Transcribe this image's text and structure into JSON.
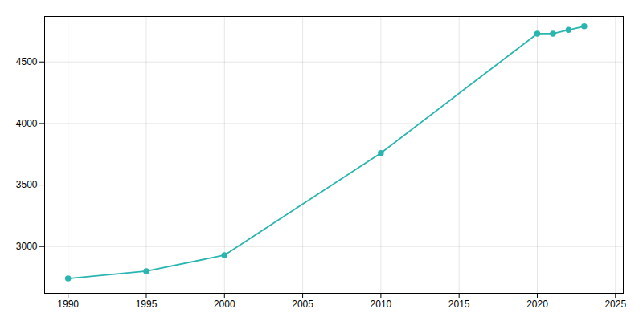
{
  "chart_data": {
    "type": "line",
    "x": [
      1990,
      1995,
      2000,
      2010,
      2020,
      2021,
      2022,
      2023
    ],
    "values": [
      2740,
      2800,
      2930,
      3760,
      4730,
      4730,
      4760,
      4790
    ],
    "color": "#2ab5b0",
    "marker": "circle",
    "xlim": [
      1988.5,
      2025.5
    ],
    "ylim": [
      2620,
      4870
    ],
    "xticks": [
      1990,
      1995,
      2000,
      2005,
      2010,
      2015,
      2020,
      2025
    ],
    "yticks": [
      3000,
      3500,
      4000,
      4500
    ],
    "grid": true
  }
}
